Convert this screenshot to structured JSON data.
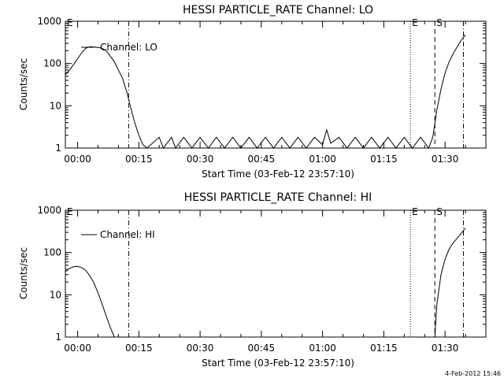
{
  "footer_date": "4-Feb-2012 15:46",
  "chart_data": [
    {
      "type": "line",
      "title": "HESSI PARTICLE_RATE Channel: LO",
      "xlabel": "Start Time (03-Feb-12 23:57:10)",
      "ylabel": "Counts/sec",
      "yscale": "log",
      "ylim": [
        1,
        1000
      ],
      "x_unit": "minutes after start",
      "xlim": [
        -3,
        100
      ],
      "x_ticks": [
        "00:00",
        "00:15",
        "00:30",
        "00:45",
        "01:00",
        "01:15",
        "01:30"
      ],
      "y_ticks": [
        "1",
        "10",
        "100",
        "1000"
      ],
      "legend": "Channel: LO",
      "markers": [
        {
          "label": "E",
          "x": -3,
          "style": "dotted"
        },
        {
          "label": "",
          "x": 12.5,
          "style": "dashdot"
        },
        {
          "label": "E",
          "x": 81.5,
          "style": "dotted"
        },
        {
          "label": "S",
          "x": 87.5,
          "style": "dashed"
        },
        {
          "label": "",
          "x": 94.5,
          "style": "dashdot"
        }
      ],
      "series": [
        {
          "name": "Channel: LO",
          "x": [
            -3,
            -2,
            -1,
            0,
            1,
            2,
            3,
            4,
            5,
            6,
            7,
            8,
            9,
            10,
            11,
            12,
            13,
            14,
            15,
            16,
            17,
            20,
            21,
            23,
            24,
            26,
            28,
            30,
            32,
            34,
            36,
            38,
            40,
            42,
            44,
            46,
            48,
            50,
            52,
            54,
            56,
            58,
            60,
            61,
            62,
            64,
            66,
            68,
            70,
            72,
            74,
            76,
            78,
            80,
            82,
            84,
            86,
            87,
            88,
            89,
            90,
            91,
            92,
            93,
            94,
            95
          ],
          "y": [
            55,
            70,
            95,
            130,
            180,
            230,
            250,
            245,
            240,
            230,
            200,
            150,
            110,
            70,
            45,
            22,
            9,
            4,
            2,
            1.2,
            1,
            1.8,
            1,
            1.8,
            1,
            1.8,
            1,
            1.8,
            1,
            1.8,
            1,
            1.8,
            1,
            1.8,
            1,
            1.8,
            1,
            1.8,
            1,
            1.8,
            1,
            1.8,
            1.2,
            2.7,
            1.3,
            1.8,
            1,
            1.8,
            1,
            1.8,
            1,
            1.8,
            1,
            1.8,
            1,
            1.8,
            1,
            1.8,
            8,
            25,
            60,
            110,
            170,
            250,
            360,
            480
          ]
        }
      ]
    },
    {
      "type": "line",
      "title": "HESSI PARTICLE_RATE Channel: HI",
      "xlabel": "Start Time (03-Feb-12 23:57:10)",
      "ylabel": "Counts/sec",
      "yscale": "log",
      "ylim": [
        1,
        1000
      ],
      "x_unit": "minutes after start",
      "xlim": [
        -3,
        100
      ],
      "x_ticks": [
        "00:00",
        "00:15",
        "00:30",
        "00:45",
        "01:00",
        "01:15",
        "01:30"
      ],
      "y_ticks": [
        "1",
        "10",
        "100",
        "1000"
      ],
      "legend": "Channel: HI",
      "markers": [
        {
          "label": "E",
          "x": -3,
          "style": "dotted"
        },
        {
          "label": "",
          "x": 12.5,
          "style": "dashdot"
        },
        {
          "label": "E",
          "x": 81.5,
          "style": "dotted"
        },
        {
          "label": "S",
          "x": 87.5,
          "style": "dashed"
        },
        {
          "label": "",
          "x": 94.5,
          "style": "dashdot"
        }
      ],
      "series": [
        {
          "name": "Channel: HI",
          "x": [
            -3,
            -2,
            -1,
            0,
            1,
            2,
            3,
            4,
            5,
            6,
            7,
            8,
            9,
            10,
            87.5,
            88,
            89,
            90,
            91,
            92,
            93,
            94,
            95
          ],
          "y": [
            35,
            42,
            46,
            47,
            44,
            38,
            28,
            19,
            11,
            6,
            3.2,
            1.7,
            1,
            1,
            1,
            6,
            30,
            70,
            120,
            170,
            220,
            290,
            380
          ]
        }
      ]
    }
  ]
}
